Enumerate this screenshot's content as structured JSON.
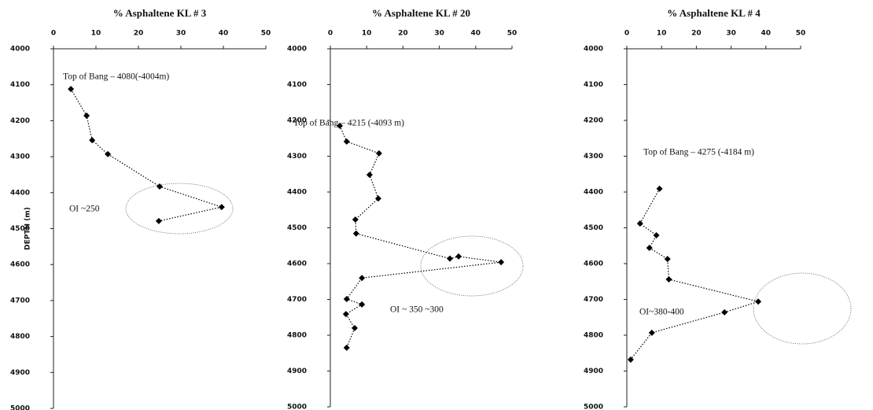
{
  "chart_data": [
    {
      "type": "line",
      "title": "% Asphaltene KL # 3",
      "y_label": "DEPTH (m)",
      "color": "#000000",
      "grid": false,
      "xlim": [
        0,
        50
      ],
      "xticks": [
        0,
        10,
        20,
        30,
        40,
        50
      ],
      "ylim": [
        5000,
        4000
      ],
      "yticks": [
        4000,
        4100,
        4200,
        4300,
        4400,
        4500,
        4600,
        4700,
        4800,
        4900,
        5000
      ],
      "x": [
        4.1,
        7.8,
        9.1,
        12.8,
        25,
        39.6,
        24.8
      ],
      "values": [
        4112,
        4186,
        4254,
        4293,
        4383,
        4440,
        4479
      ],
      "annotations": [
        "Top of Bang – 4080(-4004m)",
        "OI ~250"
      ]
    },
    {
      "type": "line",
      "title": "% Asphaltene KL # 20",
      "color": "#000000",
      "grid": false,
      "xlim": [
        0,
        50
      ],
      "xticks": [
        0,
        10,
        20,
        30,
        40,
        50
      ],
      "ylim": [
        5000,
        4000
      ],
      "yticks": [
        4000,
        4100,
        4200,
        4300,
        4400,
        4500,
        4600,
        4700,
        4800,
        4900,
        5000
      ],
      "x": [
        2.6,
        4.5,
        13.4,
        10.8,
        13.2,
        6.9,
        7.1,
        32.9,
        35.3,
        47,
        8.7,
        4.5,
        8.7,
        4.3,
        6.7,
        4.5
      ],
      "values": [
        4215,
        4259,
        4292,
        4352,
        4418,
        4477,
        4516,
        4586,
        4580,
        4596,
        4640,
        4699,
        4714,
        4741,
        4780,
        4835
      ],
      "annotations": [
        "Top of Bang – 4215 (-4093 m)",
        "OI ~ 350 ~300"
      ]
    },
    {
      "type": "line",
      "title": "% Asphaltene KL # 4",
      "color": "#000000",
      "grid": false,
      "xlim": [
        0,
        50
      ],
      "xticks": [
        0,
        10,
        20,
        30,
        40,
        50
      ],
      "ylim": [
        5000,
        4000
      ],
      "yticks": [
        4000,
        4100,
        4200,
        4300,
        4400,
        4500,
        4600,
        4700,
        4800,
        4900,
        5000
      ],
      "x": [
        9.4,
        3.8,
        8.5,
        6.5,
        11.7,
        12.1,
        37.8,
        28.1,
        7.2,
        1.1
      ],
      "values": [
        4391,
        4488,
        4521,
        4556,
        4587,
        4644,
        4706,
        4736,
        4793,
        4868
      ],
      "annotations": [
        "Top of Bang – 4275 (-4184 m)",
        "OI~380-400"
      ]
    }
  ]
}
